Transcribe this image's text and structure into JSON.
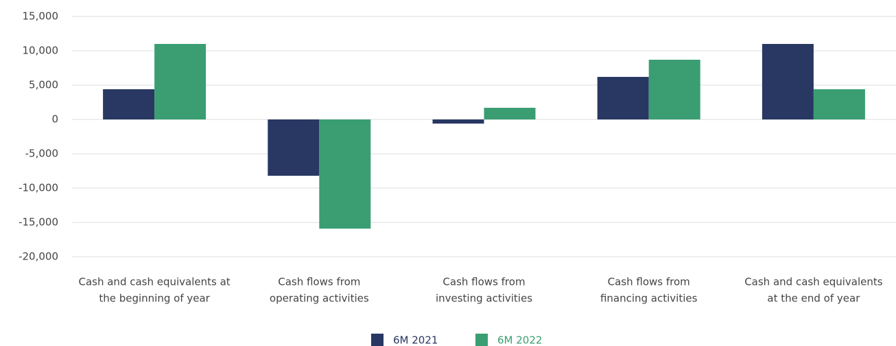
{
  "chart_data": {
    "type": "bar",
    "categories": [
      [
        "Cash and cash equivalents at",
        "the beginning of year"
      ],
      [
        "Cash flows from",
        "operating activities"
      ],
      [
        "Cash flows from",
        "investing activities"
      ],
      [
        "Cash flows from",
        "financing activities"
      ],
      [
        "Cash and cash equivalents",
        "at the end of year"
      ]
    ],
    "series": [
      {
        "name": "6M 2021",
        "color": "#283862",
        "values": [
          4400,
          -8200,
          -600,
          6200,
          11000
        ]
      },
      {
        "name": "6M 2022",
        "color": "#3a9e72",
        "values": [
          11000,
          -15900,
          1700,
          8700,
          4400
        ]
      }
    ],
    "ylim": [
      -20000,
      15000
    ],
    "yticks": [
      {
        "value": -20000,
        "label": "-20,000"
      },
      {
        "value": -15000,
        "label": "-15,000"
      },
      {
        "value": -10000,
        "label": "-10,000"
      },
      {
        "value": -5000,
        "label": "-5,000"
      },
      0,
      {
        "value": 5000,
        "label": "5,000"
      },
      {
        "value": 10000,
        "label": "10,000"
      },
      {
        "value": 15000,
        "label": "15,000"
      }
    ],
    "grid": true,
    "legend": "bottom"
  }
}
